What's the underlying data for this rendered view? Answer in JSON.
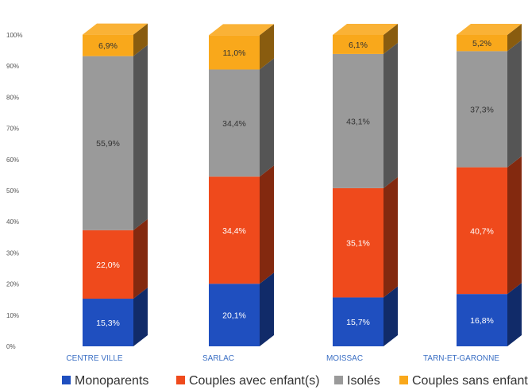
{
  "chart_data": {
    "type": "bar",
    "stacked": true,
    "normalized": true,
    "three_d": true,
    "categories": [
      "CENTRE VILLE",
      "SARLAC",
      "MOISSAC",
      "TARN-ET-GARONNE"
    ],
    "series": [
      {
        "name": "Monoparents",
        "values": [
          15.3,
          20.1,
          15.7,
          16.8
        ],
        "labels": [
          "15,3%",
          "20,1%",
          "15,7%",
          "16,8%"
        ],
        "color": "#1f4fbf"
      },
      {
        "name": "Couples avec enfant(s)",
        "values": [
          22.0,
          34.4,
          35.1,
          40.7
        ],
        "labels": [
          "22,0%",
          "34,4%",
          "35,1%",
          "40,7%"
        ],
        "color": "#ef4a1c"
      },
      {
        "name": "Isolés",
        "values": [
          55.9,
          34.4,
          43.1,
          37.3
        ],
        "labels": [
          "55,9%",
          "34,4%",
          "43,1%",
          "37,3%"
        ],
        "color": "#9a9a9a"
      },
      {
        "name": "Couples sans enfant",
        "values": [
          6.9,
          11.0,
          6.1,
          5.2
        ],
        "labels": [
          "6,9%",
          "11,0%",
          "6,1%",
          "5,2%"
        ],
        "color": "#f9a81b"
      }
    ],
    "y_ticks": [
      "0%",
      "10%",
      "20%",
      "30%",
      "40%",
      "50%",
      "60%",
      "70%",
      "80%",
      "90%",
      "100%"
    ],
    "ylim": [
      0,
      100
    ],
    "grid": false,
    "legend_position": "bottom"
  }
}
